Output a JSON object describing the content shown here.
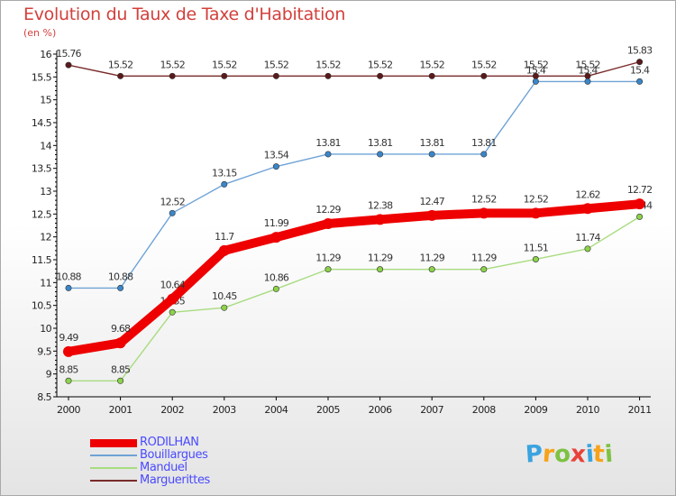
{
  "title": "Evolution du Taux de Taxe d'Habitation",
  "subtitle": "(en %)",
  "logo": {
    "letters": [
      "P",
      "r",
      "o",
      "x",
      "i",
      "t",
      "i"
    ],
    "colors": [
      "#3aa3e0",
      "#f7a21a",
      "#7dc242",
      "#e8423a",
      "#3aa3e0",
      "#f7a21a",
      "#7dc242"
    ]
  },
  "chart_data": {
    "type": "line",
    "x": [
      "2000",
      "2001",
      "2002",
      "2003",
      "2004",
      "2005",
      "2006",
      "2007",
      "2008",
      "2009",
      "2010",
      "2011"
    ],
    "ylim": [
      8.5,
      16
    ],
    "yticks": [
      "8.5",
      "9",
      "9.5",
      "10",
      "10.5",
      "11",
      "11.5",
      "12",
      "12.5",
      "13",
      "13.5",
      "14",
      "14.5",
      "15",
      "15.5",
      "16"
    ],
    "grid": false,
    "legend_position": "bottom-left",
    "series": [
      {
        "name": "Marguerittes",
        "color": "#7a2b2b",
        "marker": "#5a1a1a",
        "values": [
          15.76,
          15.52,
          15.52,
          15.52,
          15.52,
          15.52,
          15.52,
          15.52,
          15.52,
          15.52,
          15.52,
          15.83
        ],
        "labels": [
          "15.76",
          "15.52",
          "15.52",
          "15.52",
          "15.52",
          "15.52",
          "15.52",
          "15.52",
          "15.52",
          "15.52",
          "15.52",
          "15.83"
        ]
      },
      {
        "name": "Bouillargues",
        "color": "#6fa3d6",
        "marker": "#3a86c8",
        "values": [
          10.88,
          10.88,
          12.52,
          13.15,
          13.54,
          13.81,
          13.81,
          13.81,
          13.81,
          15.4,
          15.4,
          15.4
        ],
        "labels": [
          "10.88",
          "10.88",
          "12.52",
          "13.15",
          "13.54",
          "13.81",
          "13.81",
          "13.81",
          "13.81",
          "15.4",
          "15.4",
          "15.4"
        ]
      },
      {
        "name": "Manduel",
        "color": "#a8dc80",
        "marker": "#8cd24a",
        "values": [
          8.85,
          8.85,
          10.35,
          10.45,
          10.86,
          11.29,
          11.29,
          11.29,
          11.29,
          11.51,
          11.74,
          12.44
        ],
        "labels": [
          "8.85",
          "8.85",
          "10.35",
          "10.45",
          "10.86",
          "11.29",
          "11.29",
          "11.29",
          "11.29",
          "11.51",
          "11.74",
          "12.44"
        ]
      },
      {
        "name": "RODILHAN",
        "color": "#ee0000",
        "marker": "#ee0000",
        "values": [
          9.49,
          9.68,
          10.64,
          11.7,
          11.99,
          12.29,
          12.38,
          12.47,
          12.52,
          12.52,
          12.62,
          12.72
        ],
        "labels": [
          "9.49",
          "9.68",
          "10.64",
          "11.7",
          "11.99",
          "12.29",
          "12.38",
          "12.47",
          "12.52",
          "12.52",
          "12.62",
          "12.72"
        ]
      }
    ],
    "legend": [
      "RODILHAN",
      "Bouillargues",
      "Manduel",
      "Marguerittes"
    ]
  }
}
